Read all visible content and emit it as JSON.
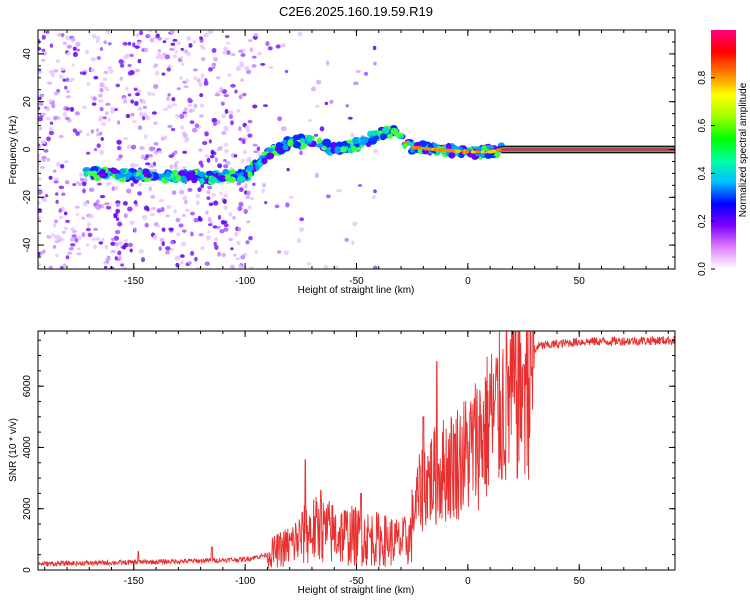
{
  "title": "C2E6.2025.160.19.59.R19",
  "chart_data": [
    {
      "type": "heatmap",
      "xlabel": "Height of straight line (km)",
      "ylabel": "Frequency (Hz)",
      "xlim": [
        -193,
        93
      ],
      "ylim": [
        -50,
        50
      ],
      "xticks": [
        -150,
        -100,
        -50,
        0,
        50
      ],
      "xtick_labels": [
        "-150",
        "-100",
        "-50",
        "0",
        "50"
      ],
      "yticks": [
        -40,
        -20,
        0,
        20,
        40
      ],
      "ytick_labels": [
        "-40",
        "-20",
        "0",
        "20",
        "40"
      ],
      "trace": [
        {
          "x": -172,
          "y": -10
        },
        {
          "x": -160,
          "y": -10
        },
        {
          "x": -150,
          "y": -11
        },
        {
          "x": -130,
          "y": -11
        },
        {
          "x": -115,
          "y": -12
        },
        {
          "x": -110,
          "y": -11
        },
        {
          "x": -100,
          "y": -11
        },
        {
          "x": -95,
          "y": -6
        },
        {
          "x": -90,
          "y": -2
        },
        {
          "x": -80,
          "y": 3
        },
        {
          "x": -70,
          "y": 4
        },
        {
          "x": -60,
          "y": 0
        },
        {
          "x": -50,
          "y": 2
        },
        {
          "x": -40,
          "y": 6
        },
        {
          "x": -33,
          "y": 8
        },
        {
          "x": -30,
          "y": 4
        },
        {
          "x": -25,
          "y": 1
        },
        {
          "x": -15,
          "y": 0
        },
        {
          "x": 0,
          "y": -1
        },
        {
          "x": 10,
          "y": -1
        },
        {
          "x": 15,
          "y": 0
        },
        {
          "x": 93,
          "y": 0
        }
      ],
      "colorbar": {
        "label": "Normalized spectral amplitude",
        "range": [
          0,
          1
        ],
        "ticks": [
          0.0,
          0.2,
          0.4,
          0.6,
          0.8
        ],
        "tick_labels": [
          "0.0",
          "0.2",
          "0.4",
          "0.6",
          "0.8"
        ],
        "colors": [
          "#ffffff",
          "#e080ff",
          "#8000ff",
          "#0000ff",
          "#00c0ff",
          "#00ffa0",
          "#00ff00",
          "#a0ff00",
          "#ffff00",
          "#ff8000",
          "#ff0000",
          "#ff0080"
        ]
      }
    },
    {
      "type": "line",
      "xlabel": "Height of straight line (km)",
      "ylabel": "SNR (10 * v/v)",
      "xlim": [
        -193,
        93
      ],
      "ylim": [
        0,
        7800
      ],
      "xticks": [
        -150,
        -100,
        -50,
        0,
        50
      ],
      "xtick_labels": [
        "-150",
        "-100",
        "-50",
        "0",
        "50"
      ],
      "yticks": [
        0,
        2000,
        4000,
        6000
      ],
      "ytick_labels": [
        "0",
        "2000",
        "4000",
        "6000"
      ],
      "color": "#e83030",
      "envelope": [
        {
          "x": -193,
          "y": 200
        },
        {
          "x": -150,
          "y": 250
        },
        {
          "x": -120,
          "y": 300
        },
        {
          "x": -100,
          "y": 350
        },
        {
          "x": -90,
          "y": 500
        },
        {
          "x": -80,
          "y": 800
        },
        {
          "x": -70,
          "y": 1300
        },
        {
          "x": -60,
          "y": 1200
        },
        {
          "x": -50,
          "y": 1100
        },
        {
          "x": -40,
          "y": 1000
        },
        {
          "x": -30,
          "y": 900
        },
        {
          "x": -26,
          "y": 1000
        },
        {
          "x": -24,
          "y": 2000
        },
        {
          "x": -20,
          "y": 2800
        },
        {
          "x": -10,
          "y": 3300
        },
        {
          "x": 0,
          "y": 3800
        },
        {
          "x": 10,
          "y": 4800
        },
        {
          "x": 20,
          "y": 5800
        },
        {
          "x": 28,
          "y": 6500
        },
        {
          "x": 31,
          "y": 7300
        },
        {
          "x": 50,
          "y": 7450
        },
        {
          "x": 93,
          "y": 7500
        }
      ],
      "spikes": [
        {
          "x": -148,
          "y": 600
        },
        {
          "x": -115,
          "y": 750
        },
        {
          "x": -73,
          "y": 3600
        },
        {
          "x": -66,
          "y": 2600
        },
        {
          "x": -48,
          "y": 2500
        },
        {
          "x": -20,
          "y": 5000
        },
        {
          "x": -14,
          "y": 6800
        },
        {
          "x": 10,
          "y": 6400
        },
        {
          "x": 25,
          "y": 6700
        }
      ]
    }
  ]
}
